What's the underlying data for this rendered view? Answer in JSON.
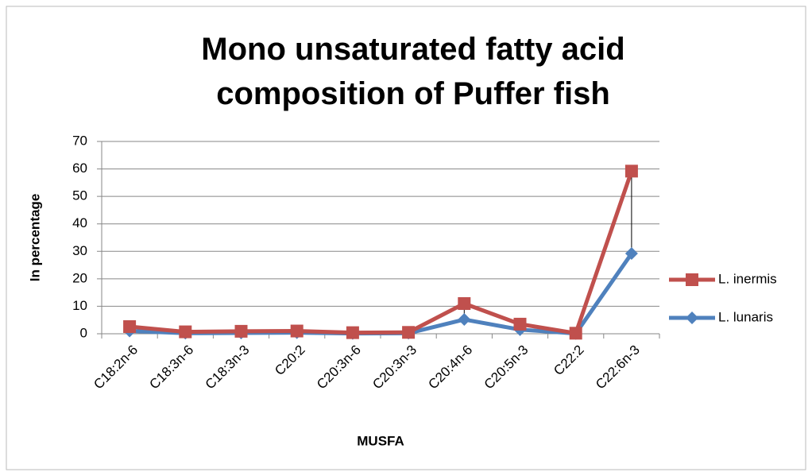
{
  "chart_data": {
    "type": "line",
    "title": "Mono unsaturated fatty acid composition of Puffer fish",
    "x_label": "MUSFA",
    "y_label": "In percentage",
    "categories": [
      "C18:2n-6",
      "C18:3n-6",
      "C18:3n-3",
      "C20:2",
      "C20:3n-6",
      "C20:3n-3",
      "C20:4n-6",
      "C20:5n-3",
      "C22:2",
      "C22:6n-3"
    ],
    "series": [
      {
        "name": "L. inermis",
        "color": "#c0504d",
        "marker": "square",
        "values": [
          2.6,
          0.7,
          0.9,
          1.0,
          0.4,
          0.5,
          11.0,
          3.5,
          0.2,
          59.2
        ]
      },
      {
        "name": "L. lunaris",
        "color": "#4f81bd",
        "marker": "diamond",
        "values": [
          1.0,
          0.2,
          0.3,
          0.4,
          0.1,
          0.2,
          5.2,
          1.5,
          0.1,
          29.2
        ]
      }
    ],
    "ylim": [
      0,
      70
    ],
    "yticks": [
      0,
      10,
      20,
      30,
      40,
      50,
      60,
      70
    ],
    "grid": true,
    "drop_lines": true,
    "legend": "right"
  }
}
